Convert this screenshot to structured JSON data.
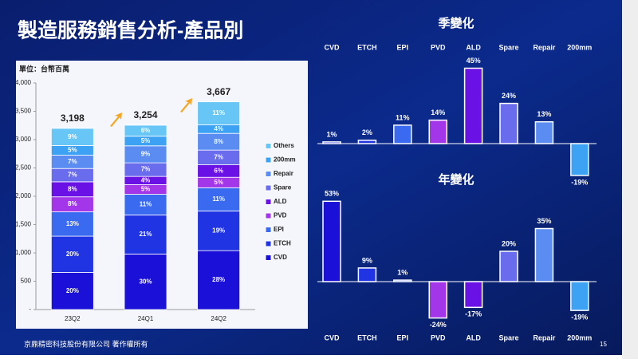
{
  "header": {
    "title": "製造服務銷售分析-產品別",
    "footer": "京鼎精密科技股份有限公司 著作權所有",
    "page": "15"
  },
  "chart_data": [
    {
      "type": "stacked_bar",
      "y_label": "單位：台幣百萬",
      "categories": [
        "23Q2",
        "24Q1",
        "24Q2"
      ],
      "ylim": [
        0,
        4000
      ],
      "yticks": [
        {
          "value": 0,
          "label": "-"
        },
        500,
        {
          "value": 1000,
          "label": "1,000"
        },
        {
          "value": 1500,
          "label": "1,500"
        },
        {
          "value": 2000,
          "label": "2,000"
        },
        {
          "value": 2500,
          "label": "2,500"
        },
        {
          "value": 3000,
          "label": "3,000"
        },
        {
          "value": 3500,
          "label": "3,500"
        },
        {
          "value": 4000,
          "label": "4,000"
        }
      ],
      "totals": [
        3198,
        3254,
        3667
      ],
      "total_labels": [
        "3,198",
        "3,254",
        "3,667"
      ],
      "series": [
        {
          "name": "CVD",
          "color": "#1a10d8",
          "values": [
            655,
            980,
            1040
          ],
          "value_labels": [
            "20%",
            "30%",
            "28%"
          ]
        },
        {
          "name": "ETCH",
          "color": "#2034e4",
          "values": [
            640,
            690,
            700
          ],
          "value_labels": [
            "20%",
            "21%",
            "19%"
          ]
        },
        {
          "name": "EPI",
          "color": "#3a6af0",
          "values": [
            430,
            365,
            410
          ],
          "value_labels": [
            "13%",
            "11%",
            "11%"
          ]
        },
        {
          "name": "PVD",
          "color": "#a236e8",
          "values": [
            265,
            170,
            185
          ],
          "value_labels": [
            "8%",
            "5%",
            "5%"
          ]
        },
        {
          "name": "ALD",
          "color": "#6a12e6",
          "values": [
            265,
            145,
            220
          ],
          "value_labels": [
            "8%",
            "4%",
            "6%"
          ]
        },
        {
          "name": "Spare",
          "color": "#6a6cee",
          "values": [
            235,
            240,
            260
          ],
          "value_labels": [
            "7%",
            "7%",
            "7%"
          ]
        },
        {
          "name": "Repair",
          "color": "#5a8cf2",
          "values": [
            235,
            300,
            295
          ],
          "value_labels": [
            "7%",
            "9%",
            "8%"
          ]
        },
        {
          "name": "200mm",
          "color": "#3ea2f4",
          "values": [
            170,
            170,
            150
          ],
          "value_labels": [
            "5%",
            "5%",
            "4%"
          ]
        },
        {
          "name": "Others",
          "color": "#68c6f6",
          "values": [
            303,
            194,
            407
          ],
          "value_labels": [
            "9%",
            "6%",
            "11%"
          ]
        }
      ]
    },
    {
      "type": "bar",
      "title": "季變化",
      "categories": [
        "CVD",
        "ETCH",
        "EPI",
        "PVD",
        "ALD",
        "Spare",
        "Repair",
        "200mm"
      ],
      "colors": [
        "#1a10d8",
        "#2034e4",
        "#3a6af0",
        "#a236e8",
        "#6a12e6",
        "#6a6cee",
        "#5a8cf2",
        "#3ea2f4"
      ],
      "values": [
        1,
        2,
        11,
        14,
        45,
        24,
        13,
        -19
      ],
      "value_labels": [
        "1%",
        "2%",
        "11%",
        "14%",
        "45%",
        "24%",
        "13%",
        "-19%"
      ]
    },
    {
      "type": "bar",
      "title": "年變化",
      "categories": [
        "CVD",
        "ETCH",
        "EPI",
        "PVD",
        "ALD",
        "Spare",
        "Repair",
        "200mm"
      ],
      "colors": [
        "#1a10d8",
        "#2034e4",
        "#3a6af0",
        "#a236e8",
        "#6a12e6",
        "#6a6cee",
        "#5a8cf2",
        "#3ea2f4"
      ],
      "values": [
        53,
        9,
        1,
        -24,
        -17,
        20,
        35,
        -19
      ],
      "value_labels": [
        "53%",
        "9%",
        "1%",
        "-24%",
        "-17%",
        "20%",
        "35%",
        "-19%"
      ]
    }
  ]
}
